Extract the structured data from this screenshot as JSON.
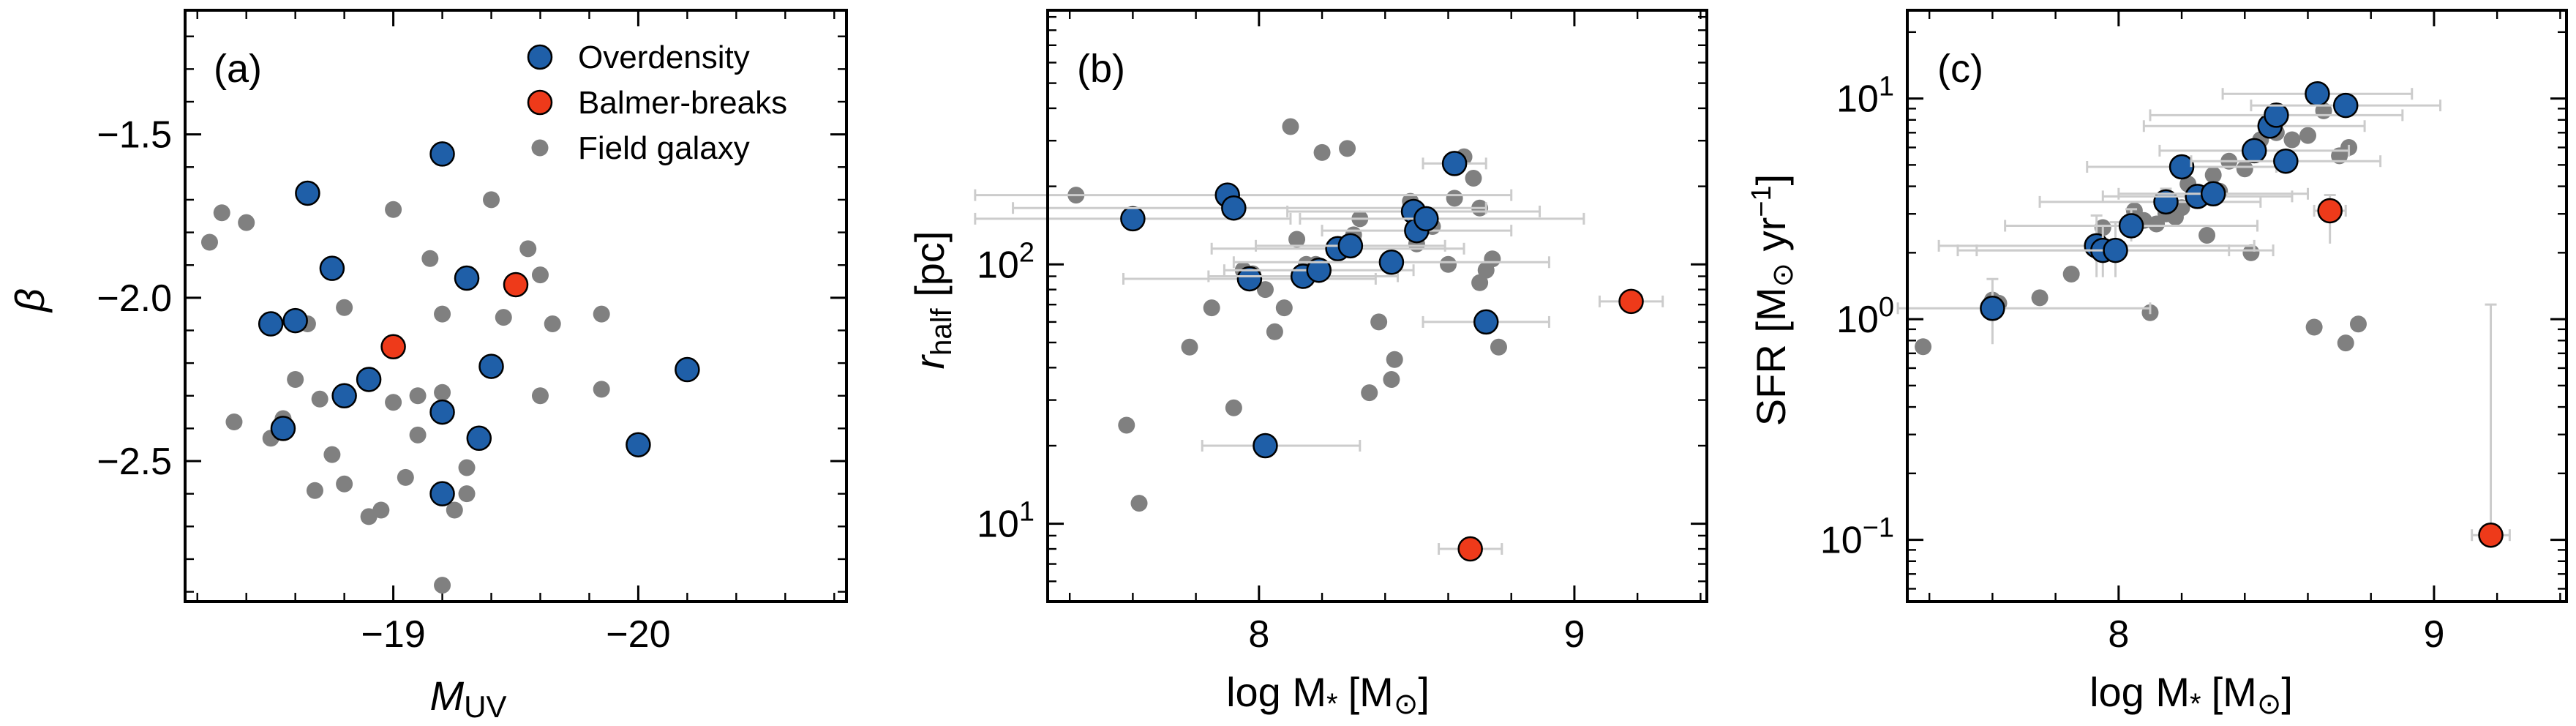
{
  "colors": {
    "overdensity": "#1f5fa8",
    "balmer": "#ee3a1a",
    "field": "#808080",
    "errorbar": "#cccccc"
  },
  "chart_data": [
    {
      "type": "scatter",
      "panel_label": "(a)",
      "xlabel_main": "M",
      "xlabel_sub": "UV",
      "ylabel": "β",
      "xlim": [
        -18.15,
        -20.85
      ],
      "ylim": [
        -2.93,
        -1.12
      ],
      "xticks": [
        {
          "v": -19,
          "label": "−19"
        },
        {
          "v": -20,
          "label": "−20"
        }
      ],
      "yticks": [
        {
          "v": -1.5,
          "label": "−1.5"
        },
        {
          "v": -2.0,
          "label": "−2.0"
        },
        {
          "v": -2.5,
          "label": "−2.5"
        }
      ],
      "legend": {
        "position": "top-right",
        "entries": [
          {
            "label": "Overdensity",
            "color": "overdensity"
          },
          {
            "label": "Balmer-breaks",
            "color": "balmer"
          },
          {
            "label": "Field galaxy",
            "color": "field"
          }
        ]
      },
      "series": [
        {
          "name": "Field galaxy",
          "color": "field",
          "points": [
            [
              -18.25,
              -1.83
            ],
            [
              -18.3,
              -1.74
            ],
            [
              -18.4,
              -1.77
            ],
            [
              -18.35,
              -2.38
            ],
            [
              -18.5,
              -2.43
            ],
            [
              -18.55,
              -2.37
            ],
            [
              -18.6,
              -2.25
            ],
            [
              -18.7,
              -2.31
            ],
            [
              -18.65,
              -2.08
            ],
            [
              -18.8,
              -2.03
            ],
            [
              -18.75,
              -2.48
            ],
            [
              -18.8,
              -2.57
            ],
            [
              -18.68,
              -2.59
            ],
            [
              -18.9,
              -2.67
            ],
            [
              -18.95,
              -2.65
            ],
            [
              -19.05,
              -2.55
            ],
            [
              -19.0,
              -2.32
            ],
            [
              -19.1,
              -2.42
            ],
            [
              -19.1,
              -2.3
            ],
            [
              -19.2,
              -2.29
            ],
            [
              -19.15,
              -1.88
            ],
            [
              -19.0,
              -1.73
            ],
            [
              -19.2,
              -2.05
            ],
            [
              -19.3,
              -2.52
            ],
            [
              -19.25,
              -2.65
            ],
            [
              -19.3,
              -2.6
            ],
            [
              -19.4,
              -1.7
            ],
            [
              -19.45,
              -2.06
            ],
            [
              -19.55,
              -1.85
            ],
            [
              -19.6,
              -1.93
            ],
            [
              -19.65,
              -2.08
            ],
            [
              -19.6,
              -2.3
            ],
            [
              -19.85,
              -2.05
            ],
            [
              -19.85,
              -2.28
            ],
            [
              -19.2,
              -2.88
            ]
          ]
        },
        {
          "name": "Overdensity",
          "color": "overdensity",
          "points": [
            [
              -18.65,
              -1.68
            ],
            [
              -18.5,
              -2.08
            ],
            [
              -18.6,
              -2.07
            ],
            [
              -18.75,
              -1.91
            ],
            [
              -18.8,
              -2.3
            ],
            [
              -18.9,
              -2.25
            ],
            [
              -18.55,
              -2.4
            ],
            [
              -19.2,
              -1.56
            ],
            [
              -19.2,
              -2.35
            ],
            [
              -19.3,
              -1.94
            ],
            [
              -19.4,
              -2.21
            ],
            [
              -19.35,
              -2.43
            ],
            [
              -19.2,
              -2.6
            ],
            [
              -20.0,
              -2.45
            ],
            [
              -20.2,
              -2.22
            ]
          ]
        },
        {
          "name": "Balmer-breaks",
          "color": "balmer",
          "points": [
            [
              -19.0,
              -2.15
            ],
            [
              -19.5,
              -1.96
            ]
          ]
        }
      ]
    },
    {
      "type": "scatter",
      "panel_label": "(b)",
      "xlabel_main": "log M",
      "xlabel_sub": "*",
      "xlabel_unit": "[M",
      "xlabel_unit_sub": "⊙",
      "xlabel_close": "]",
      "ylabel_main": "r",
      "ylabel_sub": "half",
      "ylabel_unit": " [pc]",
      "xlim": [
        7.33,
        9.42
      ],
      "ylim_log10": [
        0.7,
        2.98
      ],
      "yscale": "log",
      "xticks": [
        {
          "v": 8,
          "label": "8"
        },
        {
          "v": 9,
          "label": "9"
        }
      ],
      "yticks": [
        {
          "v": 1,
          "base": "10",
          "exp": "1"
        },
        {
          "v": 2,
          "base": "10",
          "exp": "2"
        }
      ],
      "series": [
        {
          "name": "Field galaxy",
          "color": "field",
          "points": [
            [
              7.42,
              185
            ],
            [
              7.58,
              24
            ],
            [
              7.62,
              12
            ],
            [
              7.78,
              48
            ],
            [
              7.85,
              68
            ],
            [
              7.92,
              28
            ],
            [
              7.95,
              95
            ],
            [
              7.98,
              92
            ],
            [
              8.02,
              80
            ],
            [
              8.05,
              55
            ],
            [
              8.08,
              68
            ],
            [
              8.1,
              340
            ],
            [
              8.12,
              125
            ],
            [
              8.15,
              100
            ],
            [
              8.18,
              100
            ],
            [
              8.2,
              270
            ],
            [
              8.25,
              112
            ],
            [
              8.28,
              280
            ],
            [
              8.3,
              130
            ],
            [
              8.32,
              150
            ],
            [
              8.35,
              32
            ],
            [
              8.38,
              60
            ],
            [
              8.42,
              36
            ],
            [
              8.43,
              43
            ],
            [
              8.48,
              175
            ],
            [
              8.5,
              120
            ],
            [
              8.55,
              140
            ],
            [
              8.6,
              100
            ],
            [
              8.62,
              180
            ],
            [
              8.65,
              260
            ],
            [
              8.68,
              215
            ],
            [
              8.7,
              165
            ],
            [
              8.7,
              85
            ],
            [
              8.72,
              95
            ],
            [
              8.74,
              105
            ],
            [
              8.76,
              48
            ]
          ]
        },
        {
          "name": "Overdensity",
          "color": "overdensity",
          "points": [
            [
              7.6,
              150,
              0.5,
              0.5,
              0,
              0
            ],
            [
              7.9,
              185,
              0.8,
              0.9,
              0,
              0
            ],
            [
              7.92,
              165,
              0.7,
              0.8,
              0,
              0
            ],
            [
              7.97,
              88,
              0.4,
              0.4,
              0,
              0
            ],
            [
              8.02,
              20,
              0.2,
              0.3,
              0,
              0
            ],
            [
              8.14,
              90,
              0.3,
              0.3,
              0,
              0
            ],
            [
              8.19,
              95,
              0.3,
              0.3,
              0,
              0
            ],
            [
              8.25,
              115,
              0.4,
              0.4,
              0,
              0
            ],
            [
              8.29,
              118,
              0.3,
              0.3,
              0,
              0
            ],
            [
              8.42,
              102,
              0.5,
              0.5,
              0,
              0
            ],
            [
              8.49,
              160,
              0.4,
              0.4,
              0,
              0
            ],
            [
              8.5,
              135,
              0.3,
              0.3,
              0,
              0
            ],
            [
              8.53,
              150,
              0.4,
              0.5,
              0,
              0
            ],
            [
              8.62,
              245,
              0.1,
              0.1,
              0,
              0
            ],
            [
              8.72,
              60,
              0.2,
              0.2,
              0,
              0
            ]
          ]
        },
        {
          "name": "Balmer-breaks",
          "color": "balmer",
          "points": [
            [
              9.18,
              72,
              0.1,
              0.1,
              0,
              0
            ],
            [
              8.67,
              8,
              0.1,
              0.1,
              0,
              0
            ]
          ]
        }
      ]
    },
    {
      "type": "scatter",
      "panel_label": "(c)",
      "xlabel_main": "log M",
      "xlabel_sub": "*",
      "xlabel_unit": "[M",
      "xlabel_unit_sub": "⊙",
      "xlabel_close": "]",
      "ylabel_main": "SFR [M",
      "ylabel_sub": "⊙",
      "ylabel_unit": " yr",
      "ylabel_exp": "−1",
      "ylabel_close": "]",
      "xlim": [
        7.33,
        9.42
      ],
      "ylim_log10": [
        -1.28,
        1.4
      ],
      "yscale": "log",
      "xticks": [
        {
          "v": 8,
          "label": "8"
        },
        {
          "v": 9,
          "label": "9"
        }
      ],
      "yticks": [
        {
          "v": -1,
          "base": "10",
          "exp": "−1"
        },
        {
          "v": 0,
          "base": "10",
          "exp": "0"
        },
        {
          "v": 1,
          "base": "10",
          "exp": "1"
        }
      ],
      "series": [
        {
          "name": "Field galaxy",
          "color": "field",
          "points": [
            [
              7.38,
              0.75
            ],
            [
              7.6,
              1.22
            ],
            [
              7.62,
              1.18
            ],
            [
              7.75,
              1.25
            ],
            [
              7.85,
              1.6
            ],
            [
              7.92,
              2.1
            ],
            [
              7.95,
              2.6
            ],
            [
              7.98,
              2.1
            ],
            [
              8.05,
              3.1
            ],
            [
              8.08,
              2.8
            ],
            [
              8.1,
              1.07
            ],
            [
              8.12,
              2.7
            ],
            [
              8.15,
              3.0
            ],
            [
              8.18,
              2.9
            ],
            [
              8.2,
              3.2
            ],
            [
              8.22,
              4.1
            ],
            [
              8.25,
              3.5
            ],
            [
              8.28,
              2.4
            ],
            [
              8.3,
              4.5
            ],
            [
              8.32,
              3.8
            ],
            [
              8.35,
              5.2
            ],
            [
              8.4,
              4.8
            ],
            [
              8.42,
              2.0
            ],
            [
              8.45,
              6.5
            ],
            [
              8.5,
              7.0
            ],
            [
              8.55,
              6.5
            ],
            [
              8.6,
              6.8
            ],
            [
              8.62,
              0.92
            ],
            [
              8.65,
              8.8
            ],
            [
              8.7,
              5.5
            ],
            [
              8.72,
              0.78
            ],
            [
              8.73,
              6.0
            ],
            [
              8.76,
              0.95
            ]
          ]
        },
        {
          "name": "Overdensity",
          "color": "overdensity",
          "points": [
            [
              7.6,
              1.12,
              0.3,
              0.5,
              0.35,
              0.4
            ],
            [
              7.93,
              2.15,
              0.5,
              0.5,
              0.6,
              0.8
            ],
            [
              7.95,
              2.05,
              0.4,
              0.4,
              0.5,
              0.6
            ],
            [
              7.99,
              2.05,
              0.5,
              0.5,
              0.5,
              0.7
            ],
            [
              8.04,
              2.65,
              0.4,
              0.4,
              0.4,
              0.5
            ],
            [
              8.15,
              3.4,
              0.4,
              0.3,
              0.3,
              0.5
            ],
            [
              8.2,
              4.9,
              0.3,
              0.3,
              0.3,
              0.4
            ],
            [
              8.25,
              3.6,
              0.3,
              0.3,
              0.25,
              0.35
            ],
            [
              8.3,
              3.7,
              0.3,
              0.3,
              0.3,
              0.4
            ],
            [
              8.43,
              5.8,
              0.3,
              0.3,
              0.25,
              0.35
            ],
            [
              8.48,
              7.5,
              0.4,
              0.3,
              0.3,
              0.4
            ],
            [
              8.5,
              8.4,
              0.4,
              0.4,
              0.3,
              0.3
            ],
            [
              8.53,
              5.2,
              0.3,
              0.3,
              0.3,
              0.4
            ],
            [
              8.63,
              10.5,
              0.3,
              0.3,
              0.25,
              0.3
            ],
            [
              8.72,
              9.3,
              0.3,
              0.3,
              0.3,
              0.3
            ]
          ]
        },
        {
          "name": "Balmer-breaks",
          "color": "balmer",
          "points": [
            [
              8.67,
              3.1,
              0.05,
              0.05,
              0.9,
              0.55
            ],
            [
              9.18,
              0.105,
              0.06,
              0.06,
              0.0,
              1.06
            ]
          ]
        }
      ]
    }
  ]
}
